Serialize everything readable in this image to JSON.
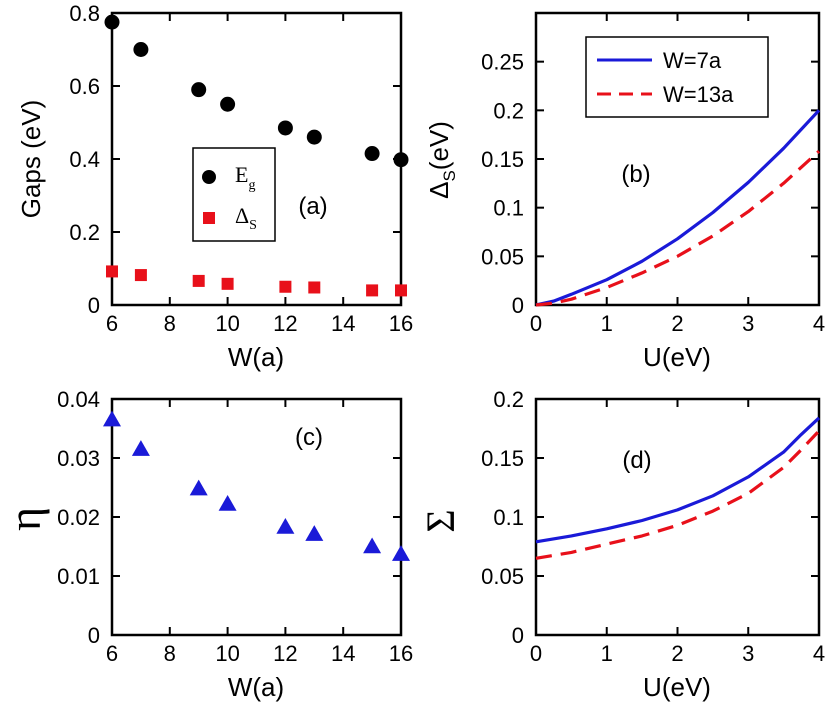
{
  "chart_data": [
    {
      "panel": "a",
      "type": "scatter",
      "tag": "(a)",
      "xlabel": "W(a)",
      "ylabel": "Gaps (eV)",
      "xlim": [
        6,
        16
      ],
      "ylim": [
        0,
        0.8
      ],
      "xticks": [
        6,
        8,
        10,
        12,
        14,
        16
      ],
      "yticks": [
        0,
        0.2,
        0.4,
        0.6,
        0.8
      ],
      "xtick_labels": [
        "6",
        "8",
        "10",
        "12",
        "14",
        "16"
      ],
      "ytick_labels": [
        "0",
        "0.2",
        "0.4",
        "0.6",
        "0.8"
      ],
      "legend_position": "center",
      "series": [
        {
          "name": "E_g",
          "label_main": "E",
          "label_sub": "g",
          "marker": "circle",
          "color": "#000000",
          "x": [
            6,
            7,
            9,
            10,
            12,
            13,
            15,
            16
          ],
          "y": [
            0.775,
            0.7,
            0.59,
            0.55,
            0.485,
            0.46,
            0.415,
            0.398
          ]
        },
        {
          "name": "Delta_S",
          "label_main": "Δ",
          "label_sub": "S",
          "marker": "square",
          "color": "#e8101a",
          "x": [
            6,
            7,
            9,
            10,
            12,
            13,
            15,
            16
          ],
          "y": [
            0.092,
            0.082,
            0.066,
            0.058,
            0.05,
            0.048,
            0.04,
            0.04
          ]
        }
      ]
    },
    {
      "panel": "b",
      "type": "line",
      "tag": "(b)",
      "xlabel": "U(eV)",
      "ylabel_main": "Δ",
      "ylabel_sub": "S",
      "ylabel_rest": "(eV)",
      "xlim": [
        0,
        4
      ],
      "ylim": [
        0,
        0.3
      ],
      "xticks": [
        0,
        1,
        2,
        3,
        4
      ],
      "yticks": [
        0,
        0.05,
        0.1,
        0.15,
        0.2,
        0.25
      ],
      "xtick_labels": [
        "0",
        "1",
        "2",
        "3",
        "4"
      ],
      "ytick_labels": [
        "0",
        "0.05",
        "0.1",
        "0.15",
        "0.2",
        "0.25"
      ],
      "legend_position": "top-right",
      "series": [
        {
          "name": "W=7a",
          "color": "#1a1ad8",
          "dash": "solid",
          "x": [
            0,
            0.25,
            0.5,
            1,
            1.5,
            2,
            2.5,
            3,
            3.5,
            4
          ],
          "y": [
            0,
            0.004,
            0.011,
            0.026,
            0.045,
            0.068,
            0.095,
            0.126,
            0.161,
            0.2
          ]
        },
        {
          "name": "W=13a",
          "color": "#e8101a",
          "dash": "dashed",
          "x": [
            0,
            0.25,
            0.5,
            1,
            1.5,
            2,
            2.5,
            3,
            3.5,
            4
          ],
          "y": [
            0,
            0.002,
            0.006,
            0.018,
            0.033,
            0.05,
            0.071,
            0.096,
            0.125,
            0.158
          ]
        }
      ]
    },
    {
      "panel": "c",
      "type": "scatter",
      "tag": "(c)",
      "xlabel": "W(a)",
      "ylabel": "η",
      "xlim": [
        6,
        16
      ],
      "ylim": [
        0,
        0.04
      ],
      "xticks": [
        6,
        8,
        10,
        12,
        14,
        16
      ],
      "yticks": [
        0,
        0.01,
        0.02,
        0.03,
        0.04
      ],
      "xtick_labels": [
        "6",
        "8",
        "10",
        "12",
        "14",
        "16"
      ],
      "ytick_labels": [
        "0",
        "0.01",
        "0.02",
        "0.03",
        "0.04"
      ],
      "series": [
        {
          "name": "eta",
          "marker": "triangle",
          "color": "#1a1ad8",
          "x": [
            6,
            7,
            9,
            10,
            12,
            13,
            15,
            16
          ],
          "y": [
            0.0365,
            0.0315,
            0.0248,
            0.0222,
            0.0183,
            0.0171,
            0.015,
            0.0137
          ]
        }
      ]
    },
    {
      "panel": "d",
      "type": "line",
      "tag": "(d)",
      "xlabel": "U(eV)",
      "ylabel": "Σ",
      "xlim": [
        0,
        4
      ],
      "ylim": [
        0,
        0.2
      ],
      "xticks": [
        0,
        1,
        2,
        3,
        4
      ],
      "yticks": [
        0,
        0.05,
        0.1,
        0.15,
        0.2
      ],
      "xtick_labels": [
        "0",
        "1",
        "2",
        "3",
        "4"
      ],
      "ytick_labels": [
        "0",
        "0.05",
        "0.1",
        "0.15",
        "0.2"
      ],
      "series": [
        {
          "name": "W=7a",
          "color": "#1a1ad8",
          "dash": "solid",
          "x": [
            0,
            0.5,
            1,
            1.5,
            2,
            2.5,
            3,
            3.5,
            3.75,
            4
          ],
          "y": [
            0.079,
            0.084,
            0.09,
            0.097,
            0.106,
            0.118,
            0.134,
            0.155,
            0.17,
            0.184
          ]
        },
        {
          "name": "W=13a",
          "color": "#e8101a",
          "dash": "dashed",
          "x": [
            0,
            0.5,
            1,
            1.5,
            2,
            2.5,
            3,
            3.5,
            3.75,
            4
          ],
          "y": [
            0.065,
            0.07,
            0.077,
            0.084,
            0.093,
            0.105,
            0.12,
            0.142,
            0.157,
            0.173
          ]
        }
      ]
    }
  ]
}
